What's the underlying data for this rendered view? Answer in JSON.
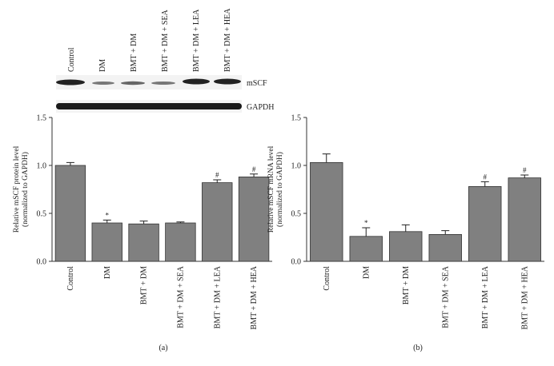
{
  "chart_data": [
    {
      "type": "bar",
      "panel": "(a)",
      "y_label": [
        "Relative mSCF protein level",
        "(normalized to GAPDH)"
      ],
      "categories": [
        "Control",
        "DM",
        "BMT + DM",
        "BMT + DM + SEA",
        "BMT + DM + LEA",
        "BMT + DM + HEA"
      ],
      "values": [
        1.0,
        0.4,
        0.39,
        0.4,
        0.82,
        0.88
      ],
      "errors": [
        0.03,
        0.03,
        0.03,
        0.01,
        0.03,
        0.03
      ],
      "annotations": [
        {
          "category": "DM",
          "text": "*"
        },
        {
          "category": "BMT + DM + LEA",
          "text": "#"
        },
        {
          "category": "BMT + DM + HEA",
          "text": "#"
        }
      ],
      "color": "#808080",
      "ylim": [
        0,
        1.5
      ],
      "yticks": [
        {
          "value": 0,
          "label": "0.0"
        },
        0.5,
        {
          "value": 1,
          "label": "1.0"
        },
        1.5
      ],
      "blot": {
        "bands": [
          "mSCF",
          "GAPDH"
        ]
      }
    },
    {
      "type": "bar",
      "panel": "(b)",
      "y_label": [
        "Relative mSCF mRNA level",
        "(normalized to GAPDH)"
      ],
      "categories": [
        "Control",
        "DM",
        "BMT + DM",
        "BMT + DM + SEA",
        "BMT + DM + LEA",
        "BMT + DM + HEA"
      ],
      "values": [
        1.03,
        0.26,
        0.31,
        0.28,
        0.78,
        0.87
      ],
      "errors": [
        0.09,
        0.09,
        0.07,
        0.04,
        0.05,
        0.03
      ],
      "annotations": [
        {
          "category": "DM",
          "text": "*"
        },
        {
          "category": "BMT + DM + LEA",
          "text": "#"
        },
        {
          "category": "BMT + DM + HEA",
          "text": "#"
        }
      ],
      "color": "#808080",
      "ylim": [
        0,
        1.5
      ],
      "yticks": [
        {
          "value": 0,
          "label": "0.0"
        },
        0.5,
        {
          "value": 1,
          "label": "1.0"
        },
        1.5
      ]
    }
  ]
}
